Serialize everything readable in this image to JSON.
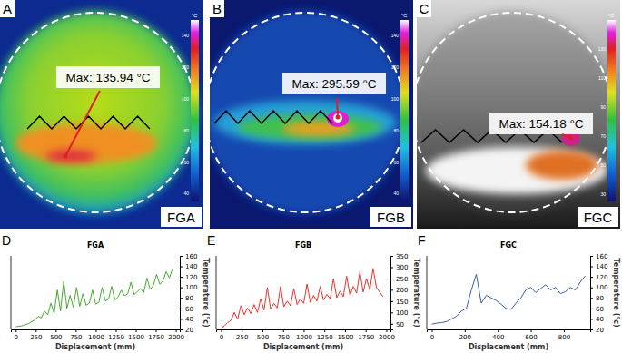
{
  "images": [
    {
      "letter": "A",
      "label": "FGA",
      "annotation": "Max: 135.94 °C",
      "colorbar": {
        "unit": "°C",
        "range": [
          35,
          150
        ],
        "ticks": [
          40,
          60,
          80,
          100,
          120,
          140
        ]
      }
    },
    {
      "letter": "B",
      "label": "FGB",
      "annotation": "Max: 295.59 °C",
      "colorbar": {
        "unit": "°C",
        "range": [
          35,
          150
        ],
        "ticks": [
          40,
          60,
          80,
          100,
          120,
          140
        ]
      }
    },
    {
      "letter": "C",
      "label": "FGC",
      "annotation": "Max: 154.18 °C",
      "colorbar": {
        "unit": "°C",
        "range": [
          25,
          150
        ],
        "ticks": [
          30,
          50,
          70,
          90,
          110,
          130
        ]
      }
    }
  ],
  "panel_letters": [
    "D",
    "E",
    "F"
  ],
  "chart_data": [
    {
      "type": "line",
      "title": "FGA",
      "x_label": "Displacement (mm)",
      "y_label": "Temperature (°c)",
      "color": "#4aa832",
      "xlim": [
        -60,
        2050
      ],
      "ylim": [
        20,
        160
      ],
      "xticks": [
        0,
        250,
        500,
        750,
        1000,
        1250,
        1500,
        1750,
        2000
      ],
      "yticks": [
        20,
        40,
        60,
        80,
        100,
        120,
        140,
        160
      ],
      "x": [
        0,
        40,
        80,
        120,
        160,
        200,
        240,
        280,
        320,
        360,
        400,
        440,
        480,
        520,
        560,
        600,
        640,
        680,
        720,
        760,
        800,
        840,
        880,
        920,
        960,
        1000,
        1040,
        1080,
        1120,
        1160,
        1200,
        1240,
        1280,
        1320,
        1360,
        1400,
        1440,
        1480,
        1520,
        1560,
        1600,
        1640,
        1680,
        1720,
        1760,
        1800,
        1840,
        1880,
        1920,
        1960
      ],
      "values": [
        25,
        26,
        27,
        29,
        31,
        35,
        38,
        45,
        42,
        55,
        48,
        70,
        50,
        95,
        55,
        112,
        60,
        85,
        62,
        100,
        64,
        88,
        66,
        70,
        95,
        68,
        72,
        100,
        74,
        78,
        102,
        76,
        82,
        95,
        84,
        88,
        110,
        86,
        92,
        98,
        90,
        118,
        96,
        104,
        125,
        106,
        112,
        130,
        118,
        136
      ]
    },
    {
      "type": "line",
      "title": "FGB",
      "x_label": "Displacement (mm)",
      "y_label": "Temperature (°c)",
      "color": "#e8322c",
      "xlim": [
        -60,
        2050
      ],
      "ylim": [
        25,
        350
      ],
      "xticks": [
        0,
        250,
        500,
        750,
        1000,
        1250,
        1500,
        1750,
        2000
      ],
      "yticks": [
        50,
        100,
        150,
        200,
        250,
        300,
        350
      ],
      "x": [
        0,
        40,
        80,
        120,
        160,
        200,
        240,
        280,
        320,
        360,
        400,
        440,
        480,
        520,
        560,
        600,
        640,
        680,
        720,
        760,
        800,
        840,
        880,
        920,
        960,
        1000,
        1040,
        1080,
        1120,
        1160,
        1200,
        1240,
        1280,
        1320,
        1360,
        1400,
        1440,
        1480,
        1520,
        1560,
        1600,
        1640,
        1680,
        1720,
        1760,
        1800,
        1840,
        1880,
        1920,
        1960
      ],
      "values": [
        30,
        40,
        55,
        65,
        100,
        70,
        130,
        90,
        120,
        95,
        135,
        100,
        160,
        110,
        210,
        115,
        140,
        120,
        215,
        125,
        150,
        130,
        205,
        135,
        160,
        140,
        225,
        145,
        175,
        150,
        215,
        155,
        180,
        160,
        250,
        165,
        195,
        170,
        260,
        175,
        215,
        185,
        280,
        190,
        250,
        200,
        295,
        210,
        190,
        170
      ]
    },
    {
      "type": "line",
      "title": "FGC",
      "x_label": "Displacement (mm)",
      "y_label": "Temperature (°c)",
      "color": "#3a5fa8",
      "xlim": [
        -30,
        960
      ],
      "ylim": [
        20,
        160
      ],
      "xticks": [
        0,
        200,
        400,
        600,
        800
      ],
      "yticks": [
        20,
        40,
        60,
        80,
        100,
        120,
        140,
        160
      ],
      "x": [
        0,
        30,
        60,
        90,
        120,
        150,
        180,
        210,
        240,
        270,
        300,
        330,
        360,
        390,
        420,
        450,
        480,
        510,
        540,
        570,
        600,
        630,
        660,
        690,
        720,
        750,
        780,
        810,
        840,
        870,
        900,
        930
      ],
      "values": [
        30,
        32,
        33,
        35,
        40,
        45,
        55,
        60,
        95,
        125,
        70,
        85,
        80,
        75,
        68,
        60,
        58,
        70,
        80,
        95,
        100,
        90,
        98,
        105,
        95,
        100,
        88,
        92,
        100,
        95,
        110,
        122
      ]
    }
  ]
}
